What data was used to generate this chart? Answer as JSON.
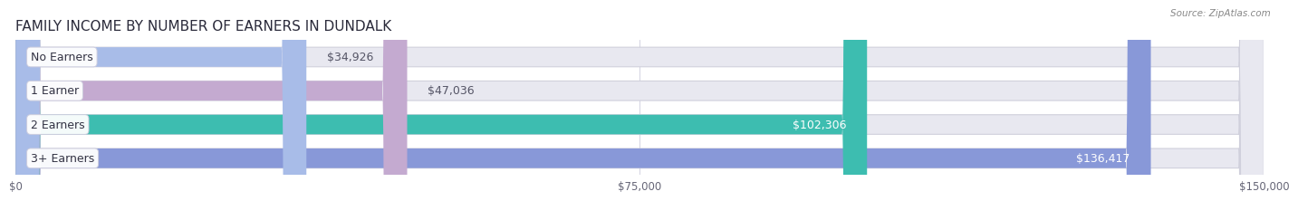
{
  "title": "FAMILY INCOME BY NUMBER OF EARNERS IN DUNDALK",
  "source": "Source: ZipAtlas.com",
  "categories": [
    "No Earners",
    "1 Earner",
    "2 Earners",
    "3+ Earners"
  ],
  "values": [
    34926,
    47036,
    102306,
    136417
  ],
  "bar_colors": [
    "#a8bce8",
    "#c4aad0",
    "#3dbdb0",
    "#8898d8"
  ],
  "bar_bg_color": "#e8e8f0",
  "bar_border_color": "#d0d0dc",
  "max_value": 150000,
  "xticks": [
    0,
    75000,
    150000
  ],
  "xtick_labels": [
    "$0",
    "$75,000",
    "$150,000"
  ],
  "value_labels": [
    "$34,926",
    "$47,036",
    "$102,306",
    "$136,417"
  ],
  "fig_bg_color": "#ffffff",
  "title_color": "#2a2a3a",
  "source_color": "#888888",
  "label_fontsize": 9,
  "title_fontsize": 11
}
